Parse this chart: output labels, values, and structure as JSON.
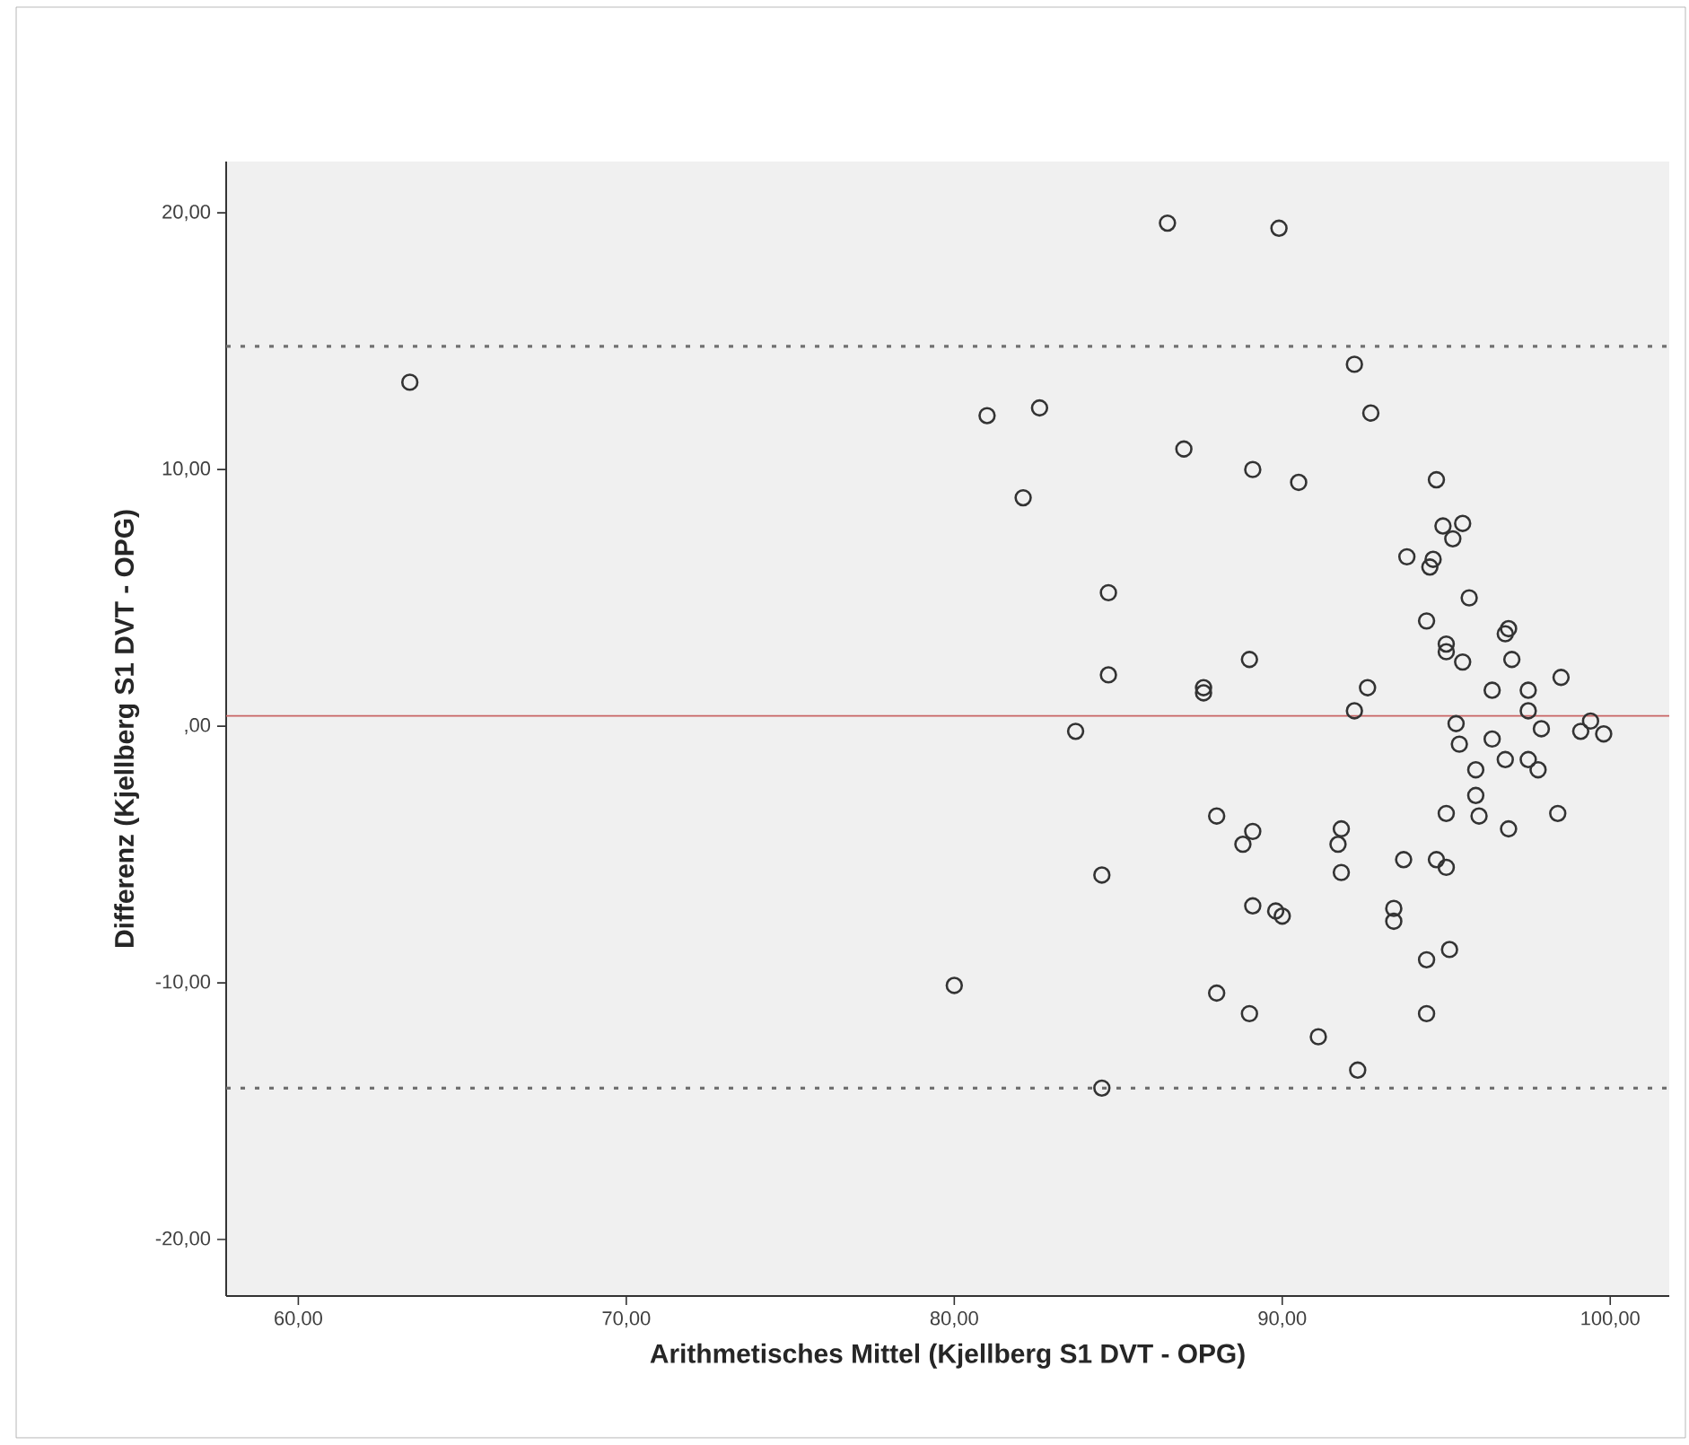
{
  "chart_data": {
    "type": "scatter",
    "xlabel": "Arithmetisches Mittel (Kjellberg S1 DVT - OPG)",
    "ylabel": "Differenz (Kjellberg S1 DVT - OPG)",
    "marker": "circle",
    "xlim": [
      57.8,
      101.8
    ],
    "ylim": [
      -22.2,
      22
    ],
    "xticks": [
      {
        "value": 60,
        "label": "60,00"
      },
      {
        "value": 70,
        "label": "70,00"
      },
      {
        "value": 80,
        "label": "80,00"
      },
      {
        "value": 90,
        "label": "90,00"
      },
      {
        "value": 100,
        "label": "100,00"
      }
    ],
    "yticks": [
      {
        "value": -20,
        "label": "-20,00"
      },
      {
        "value": -10,
        "label": "-10,00"
      },
      {
        "value": 0,
        "label": ",00"
      },
      {
        "value": 10,
        "label": "10,00"
      },
      {
        "value": 20,
        "label": "20,00"
      }
    ],
    "ref_lines": [
      {
        "axis": "y",
        "value": 0.4,
        "color": "#c86464",
        "line_style": "solid"
      },
      {
        "axis": "y",
        "value": 14.8,
        "color": "#707070",
        "line_style": "dotted"
      },
      {
        "axis": "y",
        "value": -14.1,
        "color": "#707070",
        "line_style": "dotted"
      }
    ],
    "series": [
      {
        "color": "#333333",
        "x": [
          63.4,
          86.5,
          89.9,
          92.2,
          81.0,
          82.6,
          92.7,
          87.0,
          89.1,
          90.5,
          82.1,
          94.7,
          94.9,
          95.5,
          95.2,
          93.8,
          94.6,
          94.5,
          84.7,
          95.7,
          94.4,
          96.9,
          96.8,
          95.0,
          95.0,
          95.5,
          97.0,
          98.5,
          89.0,
          84.7,
          87.6,
          87.6,
          92.6,
          96.4,
          97.5,
          92.2,
          97.5,
          83.7,
          95.3,
          99.4,
          97.9,
          99.1,
          99.8,
          95.4,
          96.4,
          96.8,
          97.5,
          97.8,
          95.9,
          95.9,
          95.0,
          96.0,
          98.4,
          96.9,
          88.0,
          89.1,
          88.8,
          91.8,
          91.7,
          91.8,
          93.7,
          94.7,
          95.0,
          84.5,
          89.1,
          89.8,
          90.0,
          93.4,
          93.4,
          95.1,
          94.4,
          80.0,
          88.0,
          89.0,
          94.4,
          91.1,
          92.3,
          84.5
        ],
        "values": [
          13.4,
          19.6,
          19.4,
          14.1,
          12.1,
          12.4,
          12.2,
          10.8,
          10.0,
          9.5,
          8.9,
          9.6,
          7.8,
          7.9,
          7.3,
          6.6,
          6.5,
          6.2,
          5.2,
          5.0,
          4.1,
          3.8,
          3.6,
          3.2,
          2.9,
          2.5,
          2.6,
          1.9,
          2.6,
          2.0,
          1.5,
          1.3,
          1.5,
          1.4,
          1.4,
          0.6,
          0.6,
          -0.2,
          0.1,
          0.2,
          -0.1,
          -0.2,
          -0.3,
          -0.7,
          -0.5,
          -1.3,
          -1.3,
          -1.7,
          -1.7,
          -2.7,
          -3.4,
          -3.5,
          -3.4,
          -4.0,
          -3.5,
          -4.1,
          -4.6,
          -4.0,
          -4.6,
          -5.7,
          -5.2,
          -5.2,
          -5.5,
          -5.8,
          -7.0,
          -7.2,
          -7.4,
          -7.1,
          -7.6,
          -8.7,
          -9.1,
          -10.1,
          -10.4,
          -11.2,
          -11.2,
          -12.1,
          -13.4,
          -14.1
        ]
      }
    ]
  }
}
